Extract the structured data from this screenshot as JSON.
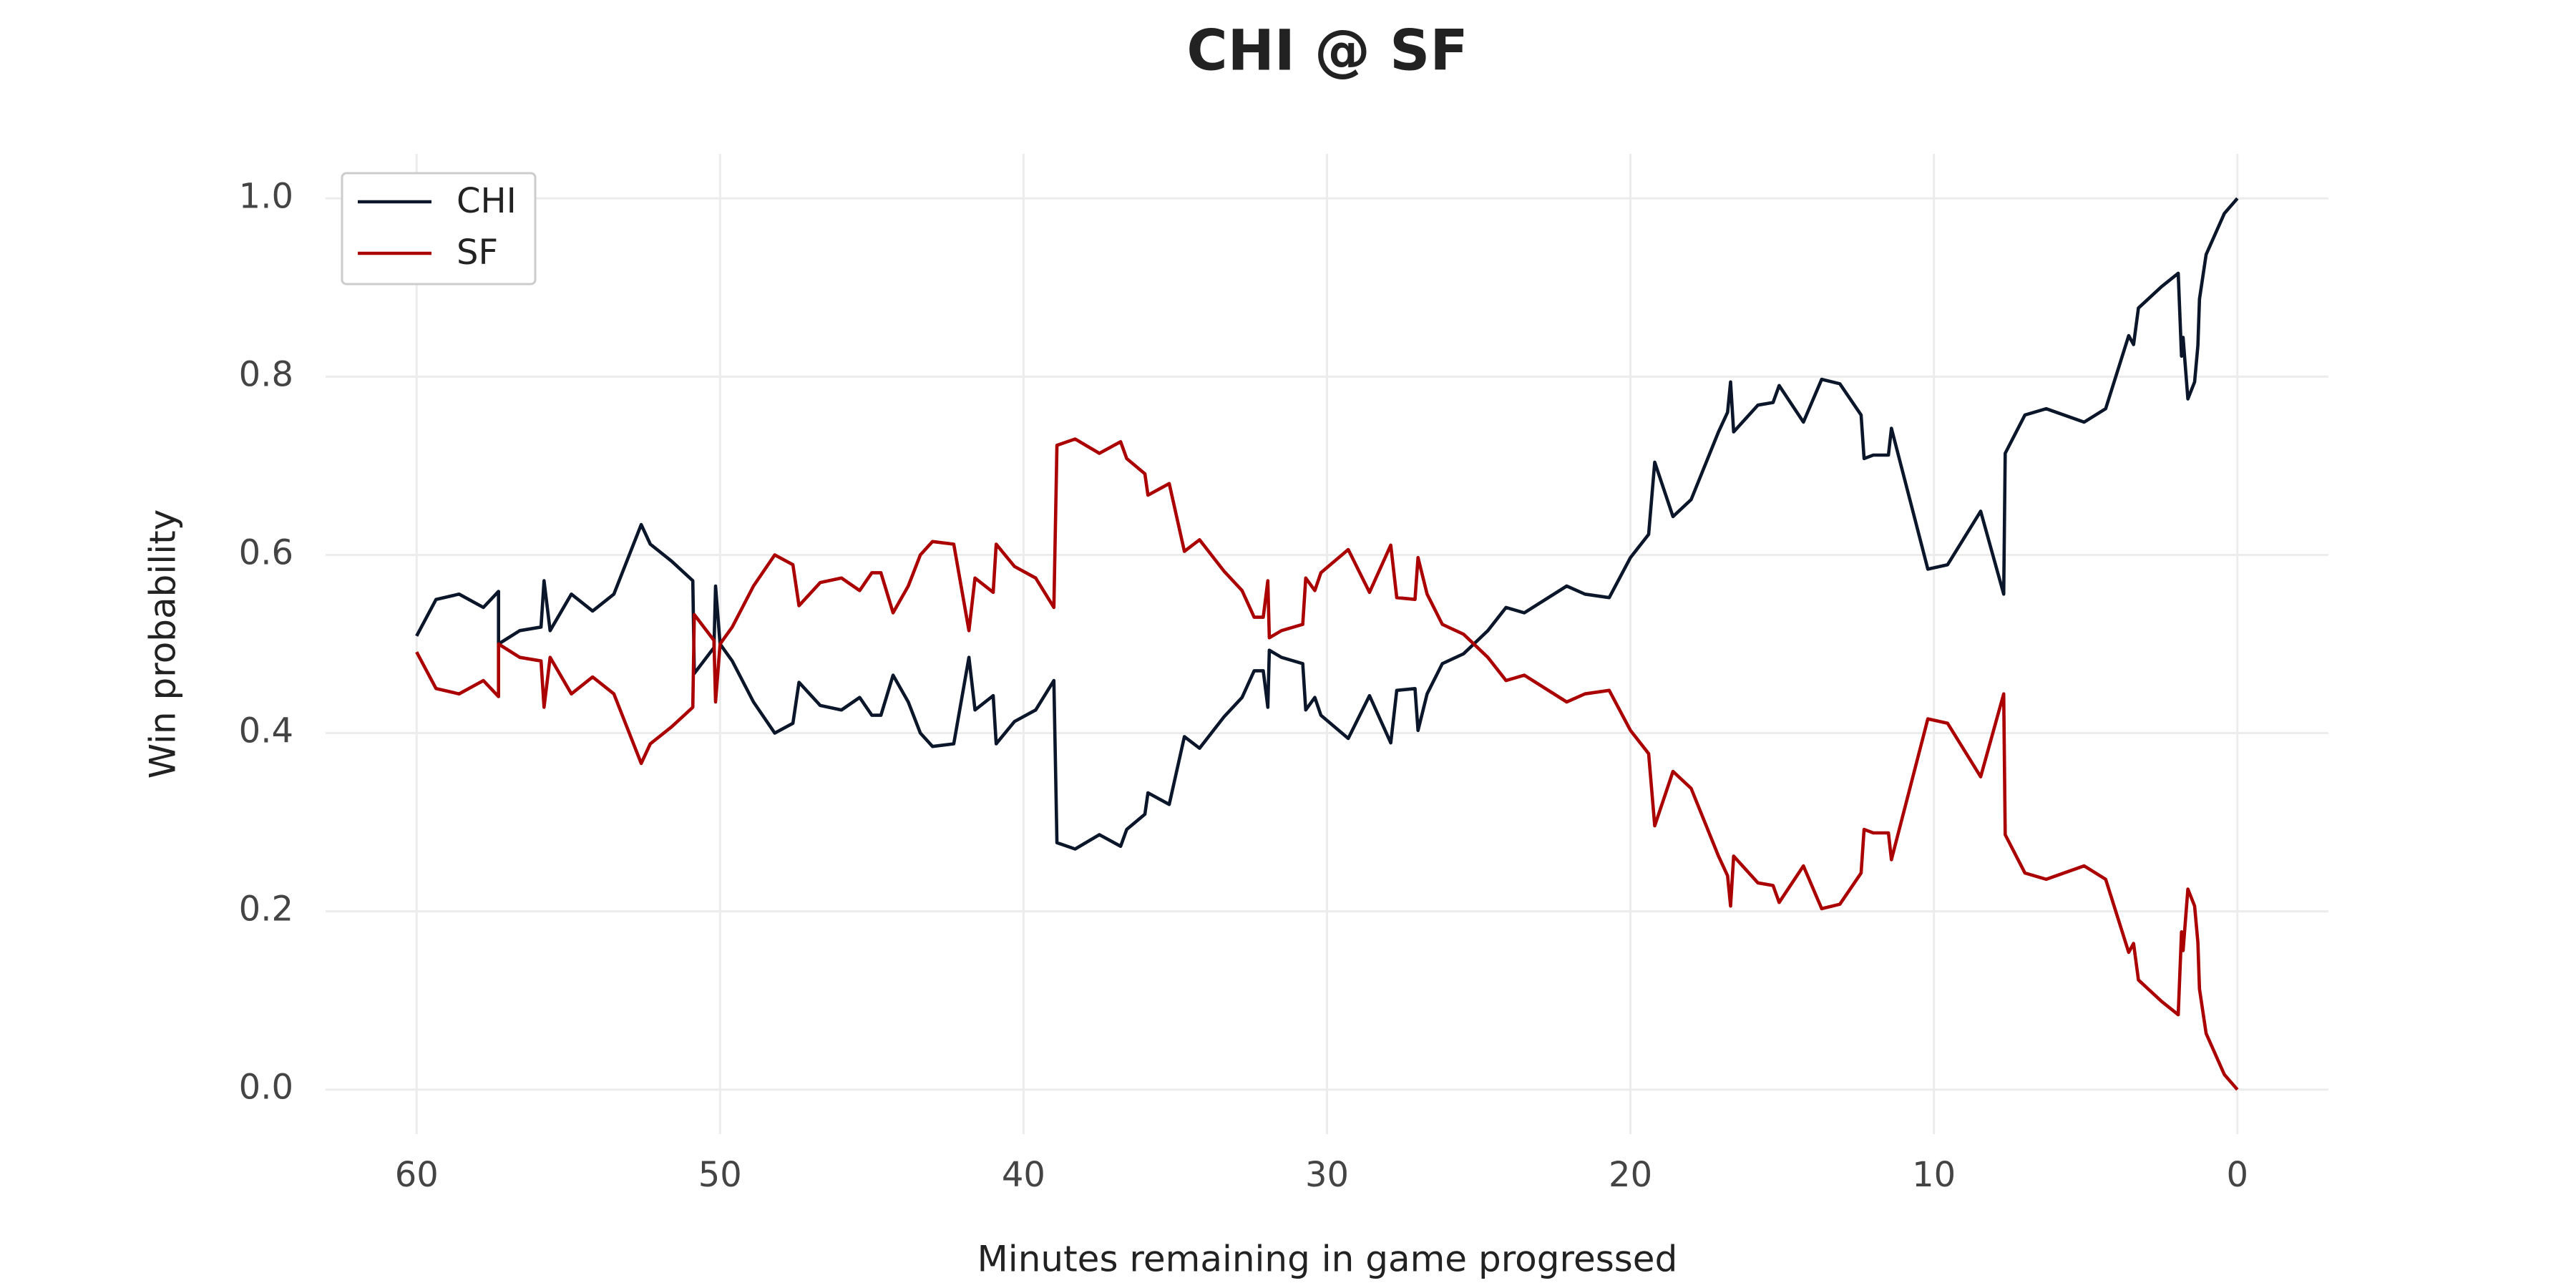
{
  "chart_data": {
    "type": "line",
    "title": "CHI @ SF",
    "xlabel": "Minutes remaining in game progressed",
    "ylabel": "Win probability",
    "x": [
      60,
      59.36,
      58.6,
      57.8,
      57.3,
      57.3,
      56.6,
      55.9,
      55.8,
      55.6,
      54.9,
      54.2,
      53.5,
      52.6,
      52.3,
      51.6,
      50.9,
      50.85,
      50.2,
      50.15,
      50.0,
      49.6,
      48.9,
      48.2,
      47.6,
      47.4,
      46.7,
      46.0,
      45.4,
      45.0,
      44.7,
      44.3,
      43.8,
      43.4,
      43.0,
      42.3,
      41.8,
      41.6,
      41.0,
      40.9,
      40.3,
      39.6,
      39.0,
      38.9,
      38.3,
      37.5,
      36.8,
      36.6,
      36.0,
      35.9,
      35.2,
      34.7,
      34.2,
      33.4,
      32.8,
      32.4,
      32.1,
      31.95,
      31.9,
      31.5,
      30.8,
      30.7,
      30.4,
      30.2,
      29.3,
      28.6,
      27.9,
      27.7,
      27.1,
      27.0,
      26.7,
      26.2,
      25.5,
      24.7,
      24.1,
      23.5,
      22.1,
      21.5,
      20.7,
      20.0,
      19.4,
      19.2,
      18.6,
      18.0,
      17.1,
      16.8,
      16.7,
      16.6,
      15.8,
      15.3,
      15.1,
      14.3,
      13.7,
      13.1,
      12.4,
      12.3,
      12.0,
      11.5,
      11.4,
      10.2,
      9.55,
      8.46,
      7.7,
      7.65,
      7.0,
      6.3,
      5.05,
      4.34,
      3.58,
      3.42,
      3.26,
      2.5,
      1.95,
      1.84,
      1.79,
      1.63,
      1.41,
      1.3,
      1.25,
      1.03,
      0.43,
      0
    ],
    "series": [
      {
        "name": "CHI",
        "color": "#0b162a",
        "values": [
          0.509,
          0.55,
          0.556,
          0.541,
          0.559,
          0.5,
          0.515,
          0.519,
          0.571,
          0.515,
          0.556,
          0.537,
          0.556,
          0.634,
          0.612,
          0.593,
          0.571,
          0.467,
          0.496,
          0.565,
          0.5,
          0.481,
          0.435,
          0.4,
          0.411,
          0.457,
          0.431,
          0.426,
          0.44,
          0.42,
          0.42,
          0.465,
          0.435,
          0.4,
          0.385,
          0.388,
          0.485,
          0.426,
          0.442,
          0.388,
          0.413,
          0.426,
          0.459,
          0.277,
          0.27,
          0.286,
          0.273,
          0.292,
          0.309,
          0.333,
          0.32,
          0.396,
          0.383,
          0.418,
          0.44,
          0.47,
          0.47,
          0.429,
          0.493,
          0.485,
          0.478,
          0.426,
          0.44,
          0.42,
          0.394,
          0.442,
          0.389,
          0.448,
          0.45,
          0.403,
          0.444,
          0.478,
          0.489,
          0.515,
          0.541,
          0.535,
          0.565,
          0.556,
          0.552,
          0.597,
          0.623,
          0.704,
          0.643,
          0.662,
          0.738,
          0.76,
          0.794,
          0.738,
          0.768,
          0.771,
          0.79,
          0.749,
          0.797,
          0.792,
          0.757,
          0.708,
          0.712,
          0.712,
          0.742,
          0.584,
          0.589,
          0.649,
          0.556,
          0.714,
          0.757,
          0.764,
          0.749,
          0.764,
          0.846,
          0.836,
          0.877,
          0.901,
          0.916,
          0.823,
          0.844,
          0.775,
          0.794,
          0.835,
          0.887,
          0.937,
          0.983,
          1.0
        ]
      },
      {
        "name": "SF",
        "color": "#aa0000",
        "values": [
          0.491,
          0.45,
          0.444,
          0.459,
          0.441,
          0.5,
          0.485,
          0.481,
          0.429,
          0.485,
          0.444,
          0.463,
          0.444,
          0.366,
          0.388,
          0.407,
          0.429,
          0.533,
          0.504,
          0.435,
          0.5,
          0.519,
          0.565,
          0.6,
          0.589,
          0.543,
          0.569,
          0.574,
          0.56,
          0.58,
          0.58,
          0.535,
          0.565,
          0.6,
          0.615,
          0.612,
          0.515,
          0.574,
          0.558,
          0.612,
          0.587,
          0.574,
          0.541,
          0.723,
          0.73,
          0.714,
          0.727,
          0.708,
          0.691,
          0.667,
          0.68,
          0.604,
          0.617,
          0.582,
          0.56,
          0.53,
          0.53,
          0.571,
          0.507,
          0.515,
          0.522,
          0.574,
          0.56,
          0.58,
          0.606,
          0.558,
          0.611,
          0.552,
          0.55,
          0.597,
          0.556,
          0.522,
          0.511,
          0.485,
          0.459,
          0.465,
          0.435,
          0.444,
          0.448,
          0.403,
          0.377,
          0.296,
          0.357,
          0.338,
          0.262,
          0.24,
          0.206,
          0.262,
          0.232,
          0.229,
          0.21,
          0.251,
          0.203,
          0.208,
          0.243,
          0.292,
          0.288,
          0.288,
          0.258,
          0.416,
          0.411,
          0.351,
          0.444,
          0.286,
          0.243,
          0.236,
          0.251,
          0.236,
          0.154,
          0.164,
          0.123,
          0.099,
          0.084,
          0.177,
          0.156,
          0.225,
          0.206,
          0.165,
          0.113,
          0.063,
          0.017,
          0
        ]
      }
    ],
    "xlim": [
      63,
      -3
    ],
    "xticks": [
      60,
      50,
      40,
      30,
      20,
      10,
      0
    ],
    "ylim": [
      -0.05,
      1.05
    ],
    "yticks": [
      {
        "value": 0,
        "label": "0.0"
      },
      0.2,
      0.4,
      0.6,
      0.8,
      {
        "value": 1,
        "label": "1.0"
      }
    ],
    "grid": true,
    "legend": "upper left"
  }
}
